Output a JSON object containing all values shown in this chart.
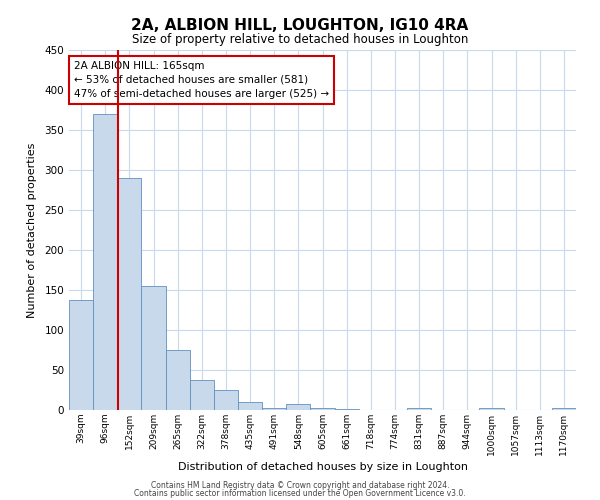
{
  "title": "2A, ALBION HILL, LOUGHTON, IG10 4RA",
  "subtitle": "Size of property relative to detached houses in Loughton",
  "xlabel": "Distribution of detached houses by size in Loughton",
  "ylabel": "Number of detached properties",
  "bin_labels": [
    "39sqm",
    "96sqm",
    "152sqm",
    "209sqm",
    "265sqm",
    "322sqm",
    "378sqm",
    "435sqm",
    "491sqm",
    "548sqm",
    "605sqm",
    "661sqm",
    "718sqm",
    "774sqm",
    "831sqm",
    "887sqm",
    "944sqm",
    "1000sqm",
    "1057sqm",
    "1113sqm",
    "1170sqm"
  ],
  "bar_values": [
    138,
    370,
    290,
    155,
    75,
    38,
    25,
    10,
    3,
    7,
    2,
    1,
    0,
    0,
    2,
    0,
    0,
    2,
    0,
    0,
    2
  ],
  "bar_color": "#c8d9ec",
  "bar_edge_color": "#6090c0",
  "red_line_x": 1.525,
  "annotation_title": "2A ALBION HILL: 165sqm",
  "annotation_line1": "← 53% of detached houses are smaller (581)",
  "annotation_line2": "47% of semi-detached houses are larger (525) →",
  "annotation_box_color": "#ffffff",
  "annotation_box_edge": "#cc0000",
  "red_line_color": "#cc0000",
  "ylim": [
    0,
    450
  ],
  "yticks": [
    0,
    50,
    100,
    150,
    200,
    250,
    300,
    350,
    400,
    450
  ],
  "footer_line1": "Contains HM Land Registry data © Crown copyright and database right 2024.",
  "footer_line2": "Contains public sector information licensed under the Open Government Licence v3.0.",
  "background_color": "#ffffff",
  "grid_color": "#c8d9ec"
}
